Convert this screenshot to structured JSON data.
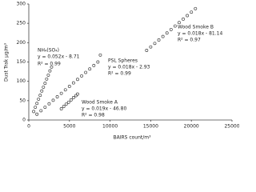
{
  "chart_data": {
    "type": "scatter",
    "x_label": "BAIRS count/m³",
    "y_label": "Dust Trak μg/m³",
    "xlim": [
      0,
      25000
    ],
    "xticks": [
      0,
      5000,
      10000,
      15000,
      20000,
      25000
    ],
    "ylim": [
      0,
      300
    ],
    "yticks": [
      0,
      50,
      100,
      150,
      200,
      250,
      300
    ],
    "series": [
      {
        "name": "NH₄(SO₄)",
        "color": "#444444",
        "x": [
          600,
          800,
          1000,
          1200,
          1400,
          1600,
          1800,
          2000,
          2200,
          2400,
          2600,
          2800
        ],
        "values": [
          22,
          33,
          43,
          54,
          64,
          75,
          85,
          95,
          106,
          116,
          127,
          137
        ]
      },
      {
        "name": "PSL Spheres",
        "color": "#444444",
        "x": [
          1000,
          1500,
          2000,
          2500,
          3000,
          3500,
          4000,
          4500,
          5000,
          5500,
          6000,
          6500,
          7000,
          7500,
          8000,
          8500,
          8800
        ],
        "values": [
          15,
          24,
          33,
          42,
          51,
          60,
          69,
          78,
          87,
          96,
          105,
          114,
          123,
          132,
          141,
          150,
          168
        ]
      },
      {
        "name": "Wood Smoke A",
        "color": "#444444",
        "x": [
          4000,
          4300,
          4600,
          4900,
          5200,
          5500,
          5800,
          6000
        ],
        "values": [
          29,
          35,
          41,
          46,
          52,
          58,
          63,
          67
        ]
      },
      {
        "name": "Wood Smoke B",
        "color": "#444444",
        "x": [
          14500,
          15000,
          15500,
          16000,
          16500,
          17000,
          17500,
          18000,
          18500,
          19000,
          19500,
          20000,
          20500
        ],
        "values": [
          180,
          189,
          198,
          207,
          216,
          225,
          234,
          243,
          252,
          261,
          270,
          279,
          288
        ]
      }
    ],
    "annotations": [
      {
        "label": "NH₄(SO₄)",
        "equation": "y = 0.052x - 8.71",
        "r2": "R² = 0.99"
      },
      {
        "label": "PSL Spheres",
        "equation": "y = 0.018x - 2.93",
        "r2": "R² = 0.99"
      },
      {
        "label": "Wood Smoke A",
        "r2": "R² = 0.98",
        "equation": "y = 0.019x - 46.80"
      },
      {
        "label": "Wood Smoke B",
        "equation": "y = 0.018x - 81.14",
        "r2": "R² = 0.97"
      }
    ]
  }
}
